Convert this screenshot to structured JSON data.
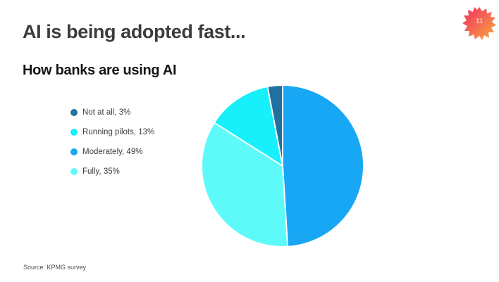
{
  "slide": {
    "title": "AI is being adopted fast...",
    "source": "Source: KPMG survey"
  },
  "logo": {
    "text": "11",
    "gradient_start": "#ef2e5f",
    "gradient_mid": "#f56a52",
    "gradient_end": "#fbac38"
  },
  "chart_data": {
    "type": "pie",
    "title": "How banks are using AI",
    "slices": [
      {
        "label": "Not at all",
        "value": 3,
        "color": "#20719f"
      },
      {
        "label": "Running pilots",
        "value": 13,
        "color": "#17effb"
      },
      {
        "label": "Moderately",
        "value": 49,
        "color": "#18a7f4"
      },
      {
        "label": "Fully",
        "value": 35,
        "color": "#5efafa"
      }
    ],
    "draw_order": [
      "Moderately",
      "Fully",
      "Running pilots",
      "Not at all"
    ],
    "start_angle_deg": 0,
    "direction": "clockwise",
    "separator_color": "#ffffff",
    "separator_width": 2,
    "legend_position": "left",
    "legend_format": "{label}, {value}%"
  }
}
